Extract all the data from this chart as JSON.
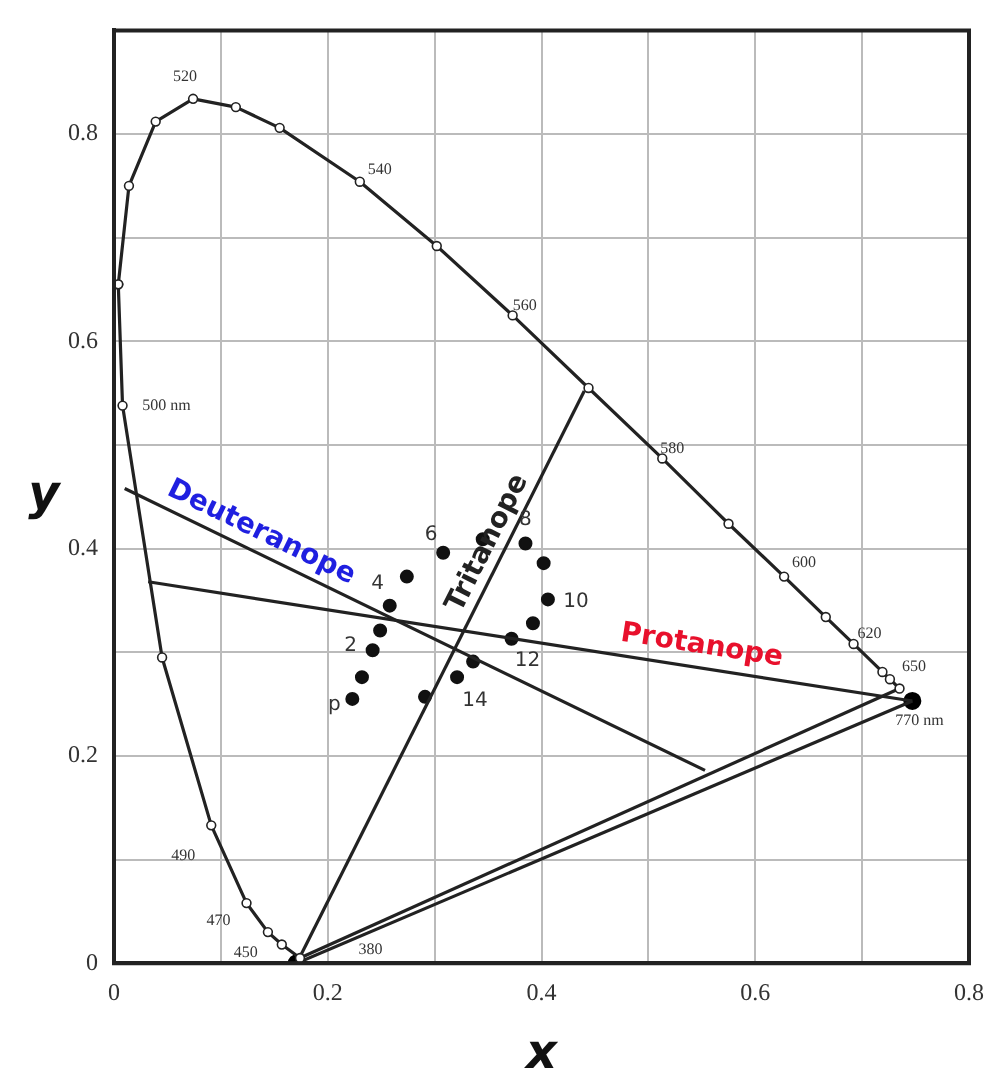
{
  "chart_data": {
    "type": "line",
    "xlabel": "x",
    "ylabel": "y",
    "xlim": [
      0,
      0.8
    ],
    "ylim": [
      0,
      0.9
    ],
    "xticks": [
      0,
      {
        "value": 0.1,
        "label": null
      },
      0.2,
      {
        "value": 0.3,
        "label": null
      },
      0.4,
      {
        "value": 0.5,
        "label": null
      },
      0.6,
      {
        "value": 0.7,
        "label": null
      },
      0.8
    ],
    "yticks": [
      0,
      {
        "value": 0.1,
        "label": null
      },
      0.2,
      {
        "value": 0.3,
        "label": null
      },
      0.4,
      {
        "value": 0.5,
        "label": null
      },
      0.6,
      {
        "value": 0.7,
        "label": null
      },
      0.8
    ],
    "grid": true,
    "legend": false,
    "marker": "circle",
    "line_style": "solid",
    "series": [
      {
        "color": "#222222",
        "x": [
          0.174,
          0.157,
          0.144,
          0.124,
          0.091,
          0.045,
          0.008,
          0.004
        ],
        "values": [
          0.005,
          0.018,
          0.03,
          0.058,
          0.133,
          0.295,
          0.538,
          0.655
        ]
      },
      {
        "color": "#222222",
        "x": [
          0.004,
          0.014,
          0.039,
          0.074,
          0.114,
          0.155,
          0.23,
          0.302,
          0.373,
          0.444,
          0.513,
          0.575,
          0.627,
          0.666,
          0.692,
          0.719,
          0.726,
          0.735
        ],
        "values": [
          0.655,
          0.75,
          0.812,
          0.834,
          0.826,
          0.806,
          0.754,
          0.692,
          0.625,
          0.555,
          0.487,
          0.424,
          0.373,
          0.334,
          0.308,
          0.281,
          0.274,
          0.265
        ]
      },
      {
        "color": "#222222",
        "marker": "none",
        "x": [
          0.174,
          0.735
        ],
        "values": [
          0.005,
          0.265
        ]
      },
      {
        "name": "Deuteranope",
        "color": "#222222",
        "marker": "none",
        "x": [
          0.01,
          0.553
        ],
        "values": [
          0.458,
          0.186
        ]
      },
      {
        "name": "Tritanope",
        "color": "#222222",
        "marker": "none",
        "x": [
          0.171,
          0.44
        ],
        "values": [
          0,
          0.552
        ]
      },
      {
        "name": "Protanope",
        "color": "#222222",
        "marker": "none",
        "x": [
          0.032,
          0.747
        ],
        "values": [
          0.368,
          0.253
        ]
      },
      {
        "color": "#222222",
        "marker": "none",
        "x": [
          0.171,
          0.747
        ],
        "values": [
          0,
          0.253
        ]
      },
      {
        "type": "scatter",
        "color": "#111111",
        "x": [
          0.308,
          0.345,
          0.385,
          0.402,
          0.274,
          0.406,
          0.258,
          0.392,
          0.249,
          0.372,
          0.242,
          0.336,
          0.232,
          0.321,
          0.223,
          0.291
        ],
        "values": [
          0.396,
          0.409,
          0.405,
          0.386,
          0.373,
          0.351,
          0.345,
          0.328,
          0.321,
          0.313,
          0.302,
          0.291,
          0.276,
          0.276,
          0.255,
          0.257
        ]
      },
      {
        "type": "scatter",
        "color": "#000000",
        "x": [
          0.747,
          0.171
        ],
        "values": [
          0.253,
          0
        ]
      }
    ],
    "annotations": [
      {
        "text": "520",
        "x": 0.074,
        "y": 0.834
      },
      {
        "text": "540",
        "x": 0.23,
        "y": 0.754
      },
      {
        "text": "560",
        "x": 0.373,
        "y": 0.625
      },
      {
        "text": "580",
        "x": 0.513,
        "y": 0.487
      },
      {
        "text": "600",
        "x": 0.627,
        "y": 0.373
      },
      {
        "text": "620",
        "x": 0.692,
        "y": 0.308
      },
      {
        "text": "650",
        "x": 0.726,
        "y": 0.274
      },
      {
        "text": "770 nm",
        "x": 0.735,
        "y": 0.265
      },
      {
        "text": "500 nm",
        "x": 0.008,
        "y": 0.538
      },
      {
        "text": "490",
        "x": 0.091,
        "y": 0.133
      },
      {
        "text": "470",
        "x": 0.124,
        "y": 0.058
      },
      {
        "text": "450",
        "x": 0.157,
        "y": 0.018
      },
      {
        "text": "380",
        "x": 0.24,
        "y": 0.036
      },
      {
        "text": "6",
        "x": 0.308,
        "y": 0.396
      },
      {
        "text": "8",
        "x": 0.385,
        "y": 0.405
      },
      {
        "text": "10",
        "x": 0.406,
        "y": 0.351
      },
      {
        "text": "4",
        "x": 0.258,
        "y": 0.345
      },
      {
        "text": "12",
        "x": 0.372,
        "y": 0.313
      },
      {
        "text": "2",
        "x": 0.242,
        "y": 0.302
      },
      {
        "text": "14",
        "x": 0.321,
        "y": 0.276
      },
      {
        "text": "p",
        "x": 0.223,
        "y": 0.255
      }
    ]
  }
}
